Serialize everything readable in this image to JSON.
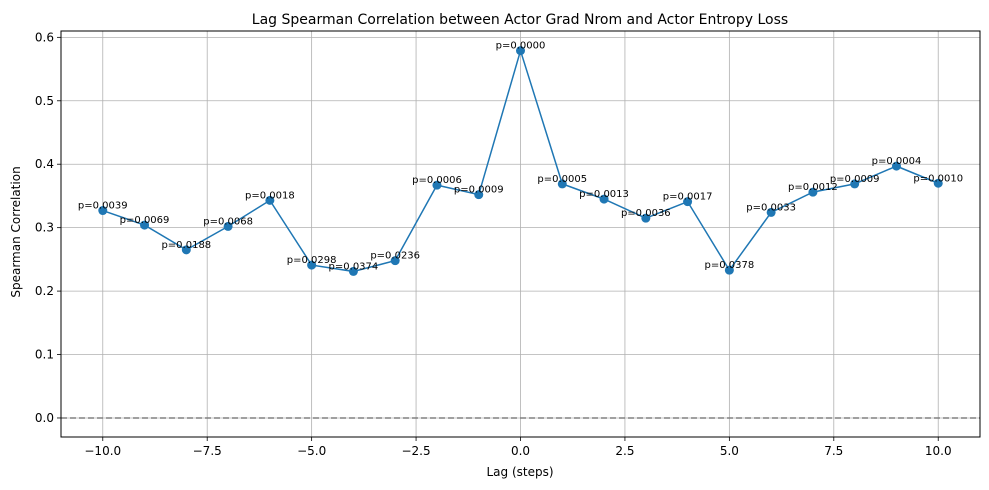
{
  "chart_data": {
    "type": "line",
    "title": "Lag Spearman Correlation between Actor Grad Nrom and Actor Entropy Loss",
    "xlabel": "Lag (steps)",
    "ylabel": "Spearman Correlation",
    "xlim": [
      -11,
      11
    ],
    "ylim": [
      -0.03,
      0.61
    ],
    "xticks": [
      -10.0,
      -7.5,
      -5.0,
      -2.5,
      0.0,
      2.5,
      5.0,
      7.5,
      10.0
    ],
    "xtick_labels": [
      "−10.0",
      "−7.5",
      "−5.0",
      "−2.5",
      "0.0",
      "2.5",
      "5.0",
      "7.5",
      "10.0"
    ],
    "yticks": [
      0.0,
      0.1,
      0.2,
      0.3,
      0.4,
      0.5,
      0.6
    ],
    "ytick_labels": [
      "0.0",
      "0.1",
      "0.2",
      "0.3",
      "0.4",
      "0.5",
      "0.6"
    ],
    "grid": true,
    "reference_line": {
      "y": 0,
      "style": "dashed",
      "color": "#808080"
    },
    "line_color": "#1f77b4",
    "x": [
      -10,
      -9,
      -8,
      -7,
      -6,
      -5,
      -4,
      -3,
      -2,
      -1,
      0,
      1,
      2,
      3,
      4,
      5,
      6,
      7,
      8,
      9,
      10
    ],
    "y": [
      0.327,
      0.304,
      0.265,
      0.302,
      0.343,
      0.241,
      0.231,
      0.248,
      0.367,
      0.352,
      0.579,
      0.369,
      0.345,
      0.315,
      0.341,
      0.233,
      0.324,
      0.356,
      0.369,
      0.397,
      0.37
    ],
    "annotations": [
      "p=0.0039",
      "p=0.0069",
      "p=0.0188",
      "p=0.0068",
      "p=0.0018",
      "p=0.0298",
      "p=0.0374",
      "p=0.0236",
      "p=0.0006",
      "p=0.0009",
      "p=0.0000",
      "p=0.0005",
      "p=0.0013",
      "p=0.0036",
      "p=0.0017",
      "p=0.0378",
      "p=0.0033",
      "p=0.0012",
      "p=0.0009",
      "p=0.0004",
      "p=0.0010"
    ]
  }
}
